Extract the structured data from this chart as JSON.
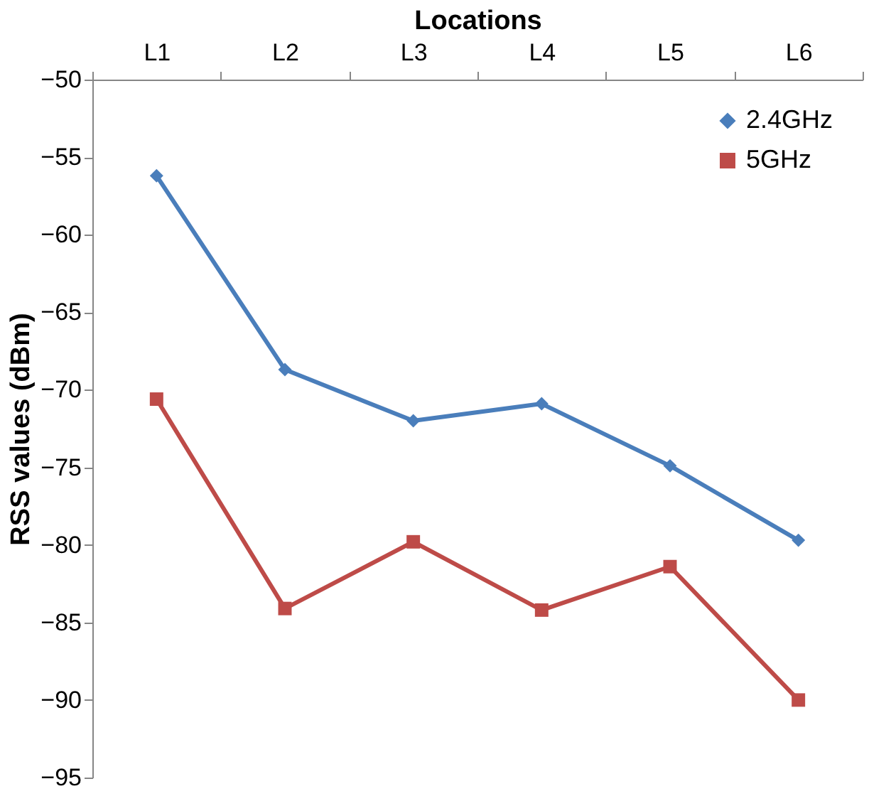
{
  "chart_data": {
    "type": "line",
    "xlabel": "Locations",
    "ylabel": "RSS values (dBm)",
    "categories": [
      "L1",
      "L2",
      "L3",
      "L4",
      "L5",
      "L6"
    ],
    "series": [
      {
        "name": "2.4GHz",
        "color": "#4a7ebb",
        "marker": "diamond",
        "values": [
          -56.2,
          -68.7,
          -72.0,
          -70.9,
          -74.9,
          -79.7
        ]
      },
      {
        "name": "5GHz",
        "color": "#be4b48",
        "marker": "square",
        "values": [
          -70.6,
          -84.1,
          -79.8,
          -84.2,
          -81.4,
          -90.0
        ]
      }
    ],
    "ylim": [
      -95,
      -50
    ],
    "yticks": [
      -95,
      -90,
      -85,
      -80,
      -75,
      -70,
      -65,
      -60,
      -55,
      -50
    ],
    "grid": false,
    "legend": "top right",
    "line_style": "solid"
  }
}
